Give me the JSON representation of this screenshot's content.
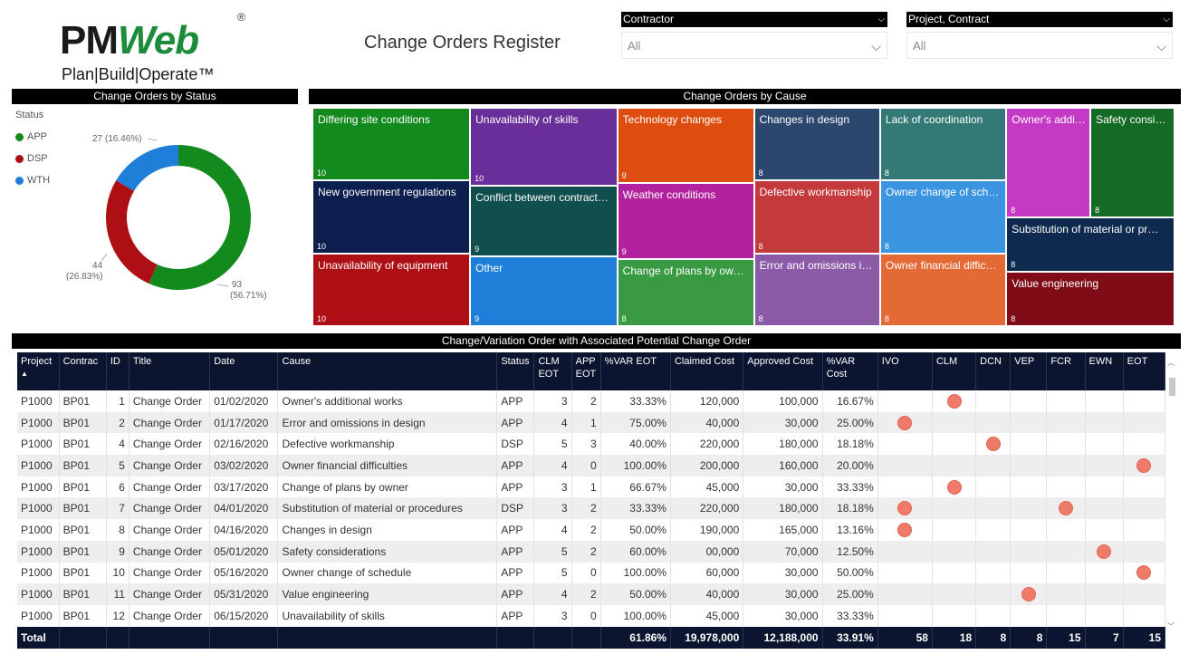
{
  "header": {
    "logo_text_pm": "PM",
    "logo_text_web": "Web",
    "logo_reg": "®",
    "logo_tagline": "Plan|Build|Operate™",
    "title": "Change Orders Register"
  },
  "slicers": [
    {
      "label": "Contractor",
      "value": "All"
    },
    {
      "label": "Project, Contract",
      "value": "All"
    }
  ],
  "status_chart": {
    "header": "Change Orders by Status",
    "legend_title": "Status",
    "labels": {
      "app": "93",
      "app_pct": "(56.71%)",
      "dsp": "44",
      "dsp_pct": "(26.83%)",
      "wth": "27 (16.46%)"
    }
  },
  "cause_chart": {
    "header": "Change Orders by Cause"
  },
  "chart_data": [
    {
      "type": "pie",
      "title": "Change Orders by Status",
      "legend_title": "Status",
      "categories": [
        "APP",
        "DSP",
        "WTH"
      ],
      "values": [
        93,
        44,
        27
      ],
      "percent": [
        56.71,
        26.83,
        16.46
      ],
      "colors": [
        "#138a1e",
        "#ad0f14",
        "#1e7ed8"
      ],
      "donut": true,
      "legend_position": "left"
    },
    {
      "type": "treemap",
      "title": "Change Orders by Cause",
      "items": [
        {
          "label": "Differing site conditions",
          "value": 10,
          "color": "#138a1e"
        },
        {
          "label": "New government regulations",
          "value": 10,
          "color": "#0d1f4f"
        },
        {
          "label": "Unavailability of equipment",
          "value": 10,
          "color": "#ad0f14"
        },
        {
          "label": "Unavailability of skills",
          "value": 10,
          "color": "#6a2e9a"
        },
        {
          "label": "Conflict between contract…",
          "value": 9,
          "color": "#114e4e"
        },
        {
          "label": "Other",
          "value": 9,
          "color": "#1e7ed8"
        },
        {
          "label": "Technology changes",
          "value": 9,
          "color": "#dd4d0f"
        },
        {
          "label": "Weather conditions",
          "value": 9,
          "color": "#b2219e"
        },
        {
          "label": "Change of plans by ow…",
          "value": 8,
          "color": "#3a9a44"
        },
        {
          "label": "Changes in design",
          "value": 8,
          "color": "#2c476e"
        },
        {
          "label": "Defective workmanship",
          "value": 8,
          "color": "#c4393c"
        },
        {
          "label": "Error and omissions i…",
          "value": 8,
          "color": "#8b5ba8"
        },
        {
          "label": "Lack of coordination",
          "value": 8,
          "color": "#337a76"
        },
        {
          "label": "Owner change of sch…",
          "value": 8,
          "color": "#3b94e0"
        },
        {
          "label": "Owner financial diffic…",
          "value": 8,
          "color": "#e46a35"
        },
        {
          "label": "Owner's addi…",
          "value": 8,
          "color": "#c43ac4"
        },
        {
          "label": "Safety consid…",
          "value": 8,
          "color": "#146b26"
        },
        {
          "label": "Substitution of material or pr…",
          "value": 8,
          "color": "#0f2a4f"
        },
        {
          "label": "Value engineering",
          "value": 8,
          "color": "#7f0c16"
        }
      ]
    }
  ],
  "table": {
    "header": "Change/Variation Order with Associated Potential Change Order",
    "columns": [
      "Project",
      "Contrac",
      "ID",
      "Title",
      "Date",
      "Cause",
      "Status",
      "CLM\nEOT",
      "APP\nEOT",
      "%VAR EOT",
      "Claimed Cost",
      "Approved Cost",
      "%VAR\nCost",
      "IVO",
      "CLM",
      "DCN",
      "VEP",
      "FCR",
      "EWN",
      "EOT"
    ],
    "rows": [
      {
        "project": "P1000",
        "contract": "BP01",
        "id": "1",
        "title": "Change Order",
        "date": "01/02/2020",
        "cause": "Owner's additional works",
        "status": "APP",
        "clm_eot": "3",
        "app_eot": "2",
        "var_eot": "33.33%",
        "claimed": "120,000",
        "approved": "100,000",
        "var_cost": "16.67%",
        "dot": "CLM"
      },
      {
        "project": "P1000",
        "contract": "BP01",
        "id": "2",
        "title": "Change Order",
        "date": "01/17/2020",
        "cause": "Error and omissions in design",
        "status": "APP",
        "clm_eot": "4",
        "app_eot": "1",
        "var_eot": "75.00%",
        "claimed": "40,000",
        "approved": "30,000",
        "var_cost": "25.00%",
        "dot": "IVO"
      },
      {
        "project": "P1000",
        "contract": "BP01",
        "id": "4",
        "title": "Change Order",
        "date": "02/16/2020",
        "cause": "Defective workmanship",
        "status": "DSP",
        "clm_eot": "5",
        "app_eot": "3",
        "var_eot": "40.00%",
        "claimed": "220,000",
        "approved": "180,000",
        "var_cost": "18.18%",
        "dot": "DCN"
      },
      {
        "project": "P1000",
        "contract": "BP01",
        "id": "5",
        "title": "Change Order",
        "date": "03/02/2020",
        "cause": "Owner financial difficulties",
        "status": "APP",
        "clm_eot": "4",
        "app_eot": "0",
        "var_eot": "100.00%",
        "claimed": "200,000",
        "approved": "160,000",
        "var_cost": "20.00%",
        "dot": "EOT"
      },
      {
        "project": "P1000",
        "contract": "BP01",
        "id": "6",
        "title": "Change Order",
        "date": "03/17/2020",
        "cause": "Change of plans by owner",
        "status": "APP",
        "clm_eot": "3",
        "app_eot": "1",
        "var_eot": "66.67%",
        "claimed": "45,000",
        "approved": "30,000",
        "var_cost": "33.33%",
        "dot": "CLM"
      },
      {
        "project": "P1000",
        "contract": "BP01",
        "id": "7",
        "title": "Change Order",
        "date": "04/01/2020",
        "cause": "Substitution of material or procedures",
        "status": "DSP",
        "clm_eot": "3",
        "app_eot": "2",
        "var_eot": "33.33%",
        "claimed": "220,000",
        "approved": "180,000",
        "var_cost": "18.18%",
        "dot": "IVO,FCR"
      },
      {
        "project": "P1000",
        "contract": "BP01",
        "id": "8",
        "title": "Change Order",
        "date": "04/16/2020",
        "cause": "Changes in design",
        "status": "APP",
        "clm_eot": "4",
        "app_eot": "2",
        "var_eot": "50.00%",
        "claimed": "190,000",
        "approved": "165,000",
        "var_cost": "13.16%",
        "dot": "IVO"
      },
      {
        "project": "P1000",
        "contract": "BP01",
        "id": "9",
        "title": "Change Order",
        "date": "05/01/2020",
        "cause": "Safety considerations",
        "status": "APP",
        "clm_eot": "5",
        "app_eot": "2",
        "var_eot": "60.00%",
        "claimed": "00,000",
        "approved": "70,000",
        "var_cost": "12.50%",
        "dot": "EWN"
      },
      {
        "project": "P1000",
        "contract": "BP01",
        "id": "10",
        "title": "Change Order",
        "date": "05/16/2020",
        "cause": "Owner change of schedule",
        "status": "APP",
        "clm_eot": "5",
        "app_eot": "0",
        "var_eot": "100.00%",
        "claimed": "60,000",
        "approved": "30,000",
        "var_cost": "50.00%",
        "dot": "EOT"
      },
      {
        "project": "P1000",
        "contract": "BP01",
        "id": "11",
        "title": "Change Order",
        "date": "05/31/2020",
        "cause": "Value engineering",
        "status": "APP",
        "clm_eot": "4",
        "app_eot": "2",
        "var_eot": "50.00%",
        "claimed": "40,000",
        "approved": "30,000",
        "var_cost": "25.00%",
        "dot": "VEP"
      },
      {
        "project": "P1000",
        "contract": "BP01",
        "id": "12",
        "title": "Change Order",
        "date": "06/15/2020",
        "cause": "Unavailability of skills",
        "status": "APP",
        "clm_eot": "3",
        "app_eot": "0",
        "var_eot": "100.00%",
        "claimed": "45,000",
        "approved": "30,000",
        "var_cost": "33.33%",
        "dot": ""
      }
    ],
    "total": {
      "label": "Total",
      "var_eot": "61.86%",
      "claimed": "19,978,000",
      "approved": "12,188,000",
      "var_cost": "33.91%",
      "ivo": "58",
      "clm": "18",
      "dcn": "8",
      "vep": "8",
      "fcr": "15",
      "ewn": "7",
      "eot": "15"
    }
  }
}
